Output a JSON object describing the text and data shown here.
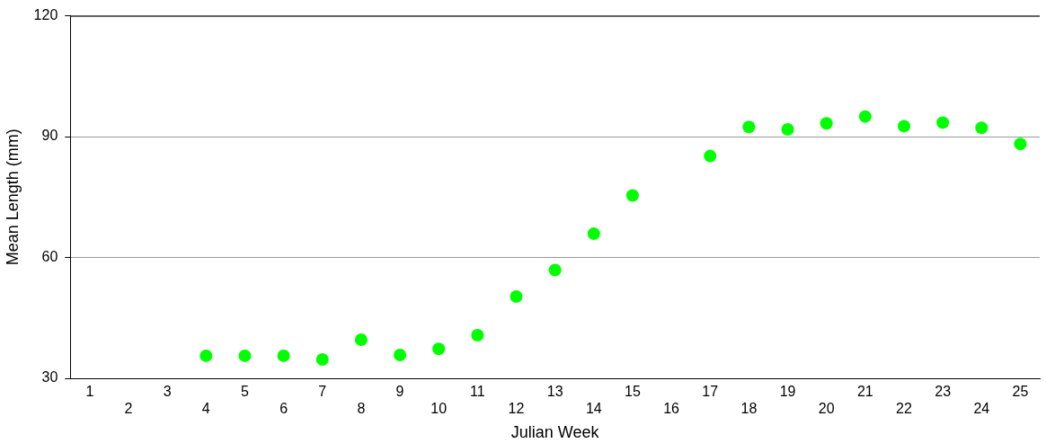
{
  "chart_data": {
    "type": "scatter",
    "xlabel": "Julian Week",
    "ylabel": "Mean Length (mm)",
    "categories": [
      "1",
      "2",
      "3",
      "4",
      "5",
      "6",
      "7",
      "8",
      "9",
      "10",
      "11",
      "12",
      "13",
      "14",
      "15",
      "16",
      "17",
      "18",
      "19",
      "20",
      "21",
      "22",
      "23",
      "24",
      "25"
    ],
    "series": [
      {
        "color": "#00ff00",
        "values": [
          null,
          null,
          null,
          35.6,
          35.6,
          35.6,
          34.7,
          39.6,
          35.8,
          37.3,
          40.7,
          50.3,
          56.9,
          65.9,
          75.4,
          null,
          85.2,
          92.4,
          91.8,
          93.3,
          95.0,
          92.6,
          93.5,
          92.2,
          88.2
        ]
      }
    ],
    "ylim": [
      30,
      120
    ],
    "yticks": [
      30,
      60,
      90,
      120
    ],
    "grid": "y",
    "marker": "circle",
    "legend": false
  }
}
